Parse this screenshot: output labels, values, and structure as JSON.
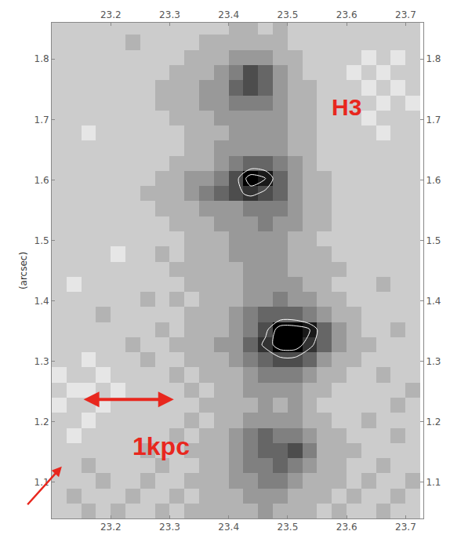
{
  "chart_data": {
    "type": "heatmap",
    "y_label": "(arcsec)",
    "annotations": [
      "H3",
      "1kpc"
    ],
    "xlim": [
      23.1,
      23.73
    ],
    "ylim": [
      1.04,
      1.86
    ],
    "xticks": [
      23.2,
      23.3,
      23.4,
      23.5,
      23.6,
      23.7
    ],
    "yticks": [
      1.1,
      1.2,
      1.3,
      1.4,
      1.5,
      1.6,
      1.7,
      1.8
    ],
    "grid": false,
    "zlim": [
      0,
      10
    ],
    "contour_levels": [
      7.5,
      9
    ],
    "x": [
      23.1125,
      23.1375,
      23.1625,
      23.1875,
      23.2125,
      23.2375,
      23.2625,
      23.2875,
      23.3125,
      23.3375,
      23.3625,
      23.3875,
      23.4125,
      23.4375,
      23.4625,
      23.4875,
      23.5125,
      23.5375,
      23.5625,
      23.5875,
      23.6125,
      23.6375,
      23.6625,
      23.6875,
      23.7125
    ],
    "y": [
      1.0525,
      1.0775,
      1.1025,
      1.1275,
      1.1525,
      1.1775,
      1.2025,
      1.2275,
      1.2525,
      1.2775,
      1.3025,
      1.3275,
      1.3525,
      1.3775,
      1.4025,
      1.4275,
      1.4525,
      1.4775,
      1.5025,
      1.5275,
      1.5525,
      1.5775,
      1.6025,
      1.6275,
      1.6525,
      1.6775,
      1.7025,
      1.7275,
      1.7525,
      1.7775,
      1.8025,
      1.8275,
      1.8525
    ],
    "z": [
      [
        2,
        2,
        3,
        2,
        3,
        2,
        2,
        3,
        2,
        3,
        3,
        3,
        3,
        3,
        4,
        3,
        3,
        3,
        2,
        3,
        2,
        2,
        3,
        2,
        2
      ],
      [
        2,
        3,
        2,
        2,
        2,
        3,
        2,
        2,
        3,
        2,
        3,
        3,
        3,
        4,
        4,
        4,
        3,
        3,
        3,
        2,
        3,
        2,
        2,
        3,
        2
      ],
      [
        2,
        2,
        2,
        3,
        2,
        2,
        3,
        2,
        2,
        3,
        3,
        3,
        4,
        4,
        5,
        5,
        4,
        3,
        3,
        3,
        2,
        3,
        2,
        2,
        3
      ],
      [
        2,
        2,
        3,
        2,
        2,
        2,
        2,
        3,
        2,
        2,
        3,
        3,
        4,
        5,
        5,
        6,
        5,
        4,
        3,
        3,
        2,
        2,
        3,
        2,
        2
      ],
      [
        2,
        2,
        2,
        2,
        2,
        2,
        3,
        2,
        2,
        3,
        3,
        3,
        4,
        5,
        6,
        6,
        7,
        5,
        3,
        3,
        3,
        2,
        2,
        2,
        2
      ],
      [
        2,
        1,
        2,
        2,
        2,
        2,
        2,
        2,
        3,
        2,
        3,
        3,
        4,
        5,
        6,
        5,
        5,
        4,
        3,
        3,
        2,
        2,
        2,
        3,
        2
      ],
      [
        2,
        2,
        1,
        2,
        2,
        2,
        2,
        2,
        2,
        3,
        2,
        3,
        3,
        4,
        4,
        4,
        4,
        3,
        3,
        2,
        2,
        3,
        2,
        2,
        2
      ],
      [
        1,
        2,
        2,
        1,
        2,
        2,
        2,
        2,
        2,
        2,
        3,
        3,
        3,
        3,
        4,
        3,
        4,
        3,
        2,
        2,
        2,
        2,
        2,
        3,
        2
      ],
      [
        2,
        1,
        1,
        2,
        1,
        2,
        2,
        2,
        2,
        3,
        2,
        3,
        3,
        4,
        4,
        4,
        4,
        3,
        3,
        2,
        2,
        2,
        2,
        2,
        3
      ],
      [
        1,
        2,
        2,
        1,
        2,
        2,
        2,
        2,
        3,
        2,
        3,
        3,
        3,
        4,
        5,
        5,
        5,
        4,
        3,
        3,
        2,
        2,
        3,
        2,
        2
      ],
      [
        2,
        2,
        1,
        2,
        2,
        2,
        3,
        2,
        2,
        3,
        3,
        3,
        4,
        5,
        6,
        7,
        7,
        6,
        4,
        3,
        3,
        2,
        2,
        2,
        2
      ],
      [
        2,
        2,
        2,
        2,
        2,
        3,
        2,
        2,
        3,
        3,
        3,
        4,
        4,
        6,
        8,
        10,
        10,
        8,
        6,
        4,
        3,
        3,
        2,
        2,
        2
      ],
      [
        2,
        2,
        2,
        2,
        2,
        2,
        2,
        3,
        2,
        3,
        3,
        3,
        4,
        5,
        7,
        10,
        10,
        9,
        6,
        4,
        3,
        2,
        2,
        3,
        2
      ],
      [
        2,
        2,
        2,
        3,
        2,
        2,
        2,
        2,
        2,
        3,
        3,
        3,
        4,
        5,
        6,
        6,
        6,
        5,
        4,
        3,
        3,
        2,
        2,
        2,
        2
      ],
      [
        2,
        2,
        2,
        2,
        2,
        2,
        3,
        2,
        3,
        2,
        3,
        3,
        3,
        4,
        4,
        5,
        4,
        4,
        3,
        3,
        2,
        2,
        2,
        2,
        2
      ],
      [
        2,
        1,
        2,
        2,
        2,
        2,
        2,
        2,
        2,
        3,
        3,
        3,
        3,
        4,
        4,
        4,
        4,
        3,
        3,
        2,
        2,
        2,
        3,
        2,
        2
      ],
      [
        2,
        2,
        2,
        2,
        2,
        2,
        2,
        2,
        3,
        3,
        3,
        3,
        3,
        4,
        4,
        4,
        3,
        3,
        3,
        3,
        2,
        2,
        2,
        2,
        2
      ],
      [
        2,
        2,
        2,
        2,
        1,
        2,
        2,
        3,
        2,
        3,
        3,
        3,
        4,
        4,
        4,
        4,
        3,
        3,
        3,
        2,
        2,
        2,
        2,
        2,
        2
      ],
      [
        2,
        2,
        2,
        2,
        2,
        2,
        2,
        2,
        2,
        3,
        3,
        3,
        4,
        4,
        4,
        4,
        3,
        3,
        2,
        2,
        2,
        2,
        2,
        2,
        2
      ],
      [
        2,
        2,
        2,
        2,
        2,
        2,
        2,
        2,
        3,
        3,
        3,
        4,
        4,
        4,
        5,
        4,
        4,
        3,
        3,
        2,
        2,
        2,
        2,
        2,
        2
      ],
      [
        2,
        2,
        2,
        2,
        2,
        2,
        2,
        3,
        3,
        3,
        4,
        4,
        4,
        5,
        5,
        5,
        4,
        3,
        3,
        2,
        2,
        2,
        2,
        2,
        2
      ],
      [
        2,
        2,
        2,
        2,
        2,
        2,
        3,
        3,
        3,
        4,
        5,
        6,
        7,
        8,
        7,
        6,
        4,
        3,
        3,
        2,
        2,
        2,
        2,
        2,
        2
      ],
      [
        2,
        2,
        2,
        2,
        2,
        2,
        2,
        3,
        3,
        4,
        4,
        5,
        7,
        10,
        9,
        6,
        4,
        3,
        3,
        2,
        2,
        2,
        2,
        2,
        2
      ],
      [
        2,
        2,
        2,
        2,
        2,
        2,
        2,
        2,
        3,
        3,
        3,
        4,
        5,
        6,
        6,
        5,
        4,
        3,
        2,
        2,
        2,
        2,
        2,
        2,
        2
      ],
      [
        2,
        2,
        2,
        2,
        2,
        2,
        2,
        2,
        2,
        3,
        3,
        4,
        4,
        4,
        4,
        4,
        3,
        3,
        2,
        2,
        2,
        2,
        2,
        2,
        2
      ],
      [
        2,
        2,
        1,
        2,
        2,
        2,
        2,
        2,
        2,
        3,
        3,
        3,
        4,
        4,
        4,
        4,
        3,
        3,
        2,
        2,
        2,
        2,
        1,
        2,
        2
      ],
      [
        2,
        2,
        2,
        2,
        2,
        2,
        2,
        2,
        3,
        3,
        3,
        4,
        4,
        4,
        4,
        4,
        3,
        3,
        2,
        2,
        2,
        1,
        2,
        2,
        2
      ],
      [
        2,
        2,
        2,
        2,
        2,
        2,
        2,
        3,
        3,
        3,
        4,
        4,
        5,
        5,
        5,
        4,
        3,
        3,
        2,
        2,
        2,
        2,
        1,
        2,
        1
      ],
      [
        2,
        2,
        2,
        2,
        2,
        2,
        2,
        3,
        3,
        3,
        4,
        4,
        6,
        7,
        6,
        4,
        3,
        3,
        2,
        2,
        2,
        1,
        2,
        1,
        2
      ],
      [
        2,
        2,
        2,
        2,
        2,
        2,
        2,
        2,
        3,
        3,
        3,
        4,
        5,
        7,
        6,
        4,
        3,
        2,
        2,
        2,
        1,
        2,
        1,
        2,
        2
      ],
      [
        2,
        2,
        2,
        2,
        2,
        2,
        2,
        2,
        2,
        3,
        3,
        3,
        4,
        4,
        4,
        3,
        3,
        2,
        2,
        2,
        2,
        1,
        2,
        1,
        2
      ],
      [
        2,
        2,
        2,
        2,
        2,
        3,
        2,
        2,
        2,
        2,
        3,
        3,
        3,
        3,
        3,
        3,
        2,
        2,
        2,
        2,
        2,
        2,
        2,
        2,
        2
      ],
      [
        2,
        2,
        2,
        2,
        2,
        2,
        2,
        2,
        2,
        2,
        2,
        2,
        3,
        3,
        2,
        3,
        2,
        2,
        2,
        2,
        2,
        2,
        2,
        2,
        2
      ]
    ]
  }
}
